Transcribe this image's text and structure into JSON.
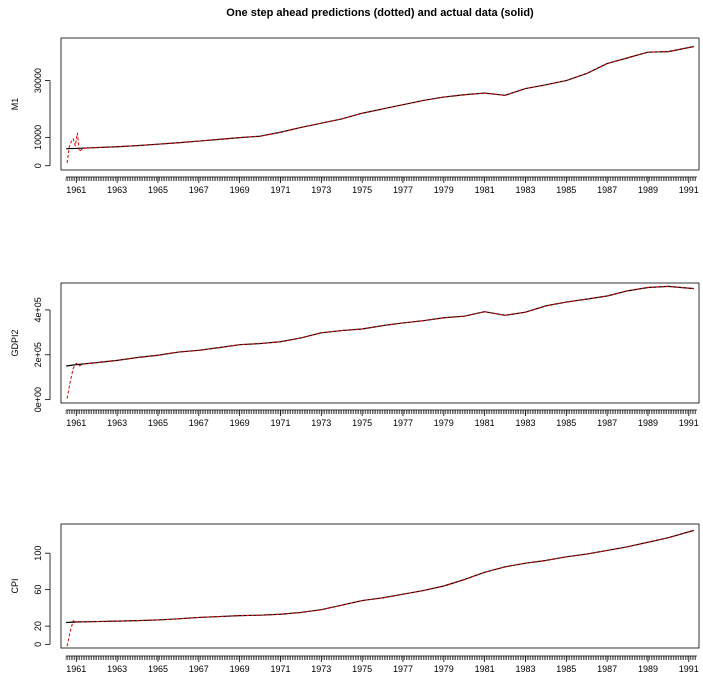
{
  "title": "One step ahead predictions (dotted) and actual data (solid)",
  "colors": {
    "actual": "#000000",
    "predicted": "#dd0000",
    "axis": "#000000"
  },
  "chart_data": [
    {
      "type": "line",
      "ylabel": "M1",
      "xlim": [
        1960.25,
        1991.5
      ],
      "ylim": [
        -1500,
        45000
      ],
      "x_ticks": [
        1961,
        1963,
        1965,
        1967,
        1969,
        1971,
        1973,
        1975,
        1977,
        1979,
        1981,
        1983,
        1985,
        1987,
        1989,
        1991
      ],
      "x_tick_labels": [
        "1961",
        "1963",
        "1965",
        "1967",
        "1969",
        "1971",
        "1973",
        "1975",
        "1977",
        "1979",
        "1981",
        "1983",
        "1985",
        "1987",
        "1989",
        "1991"
      ],
      "y_ticks": [
        0,
        10000,
        30000
      ],
      "y_tick_labels": [
        "0",
        "10000",
        "30000"
      ],
      "series": [
        {
          "role": "actual",
          "x": [
            1960.5,
            1961,
            1962,
            1963,
            1964,
            1965,
            1966,
            1967,
            1968,
            1969,
            1970,
            1971,
            1972,
            1973,
            1974,
            1975,
            1976,
            1977,
            1978,
            1979,
            1980,
            1981,
            1982,
            1983,
            1984,
            1985,
            1986,
            1987,
            1988,
            1989,
            1990,
            1991.25
          ],
          "y": [
            6000,
            6100,
            6400,
            6700,
            7100,
            7600,
            8100,
            8700,
            9300,
            9900,
            10400,
            11800,
            13500,
            15000,
            16500,
            18500,
            20000,
            21500,
            23000,
            24200,
            25000,
            25600,
            24800,
            27200,
            28500,
            30000,
            32500,
            36000,
            38000,
            40000,
            40200,
            42000
          ]
        },
        {
          "role": "predicted",
          "x": [
            1960.55,
            1960.65,
            1960.75,
            1960.85,
            1960.95,
            1961.05,
            1961.15,
            1961.3,
            1962,
            1963,
            1964,
            1965,
            1966,
            1967,
            1968,
            1969,
            1970,
            1971,
            1972,
            1973,
            1974,
            1975,
            1976,
            1977,
            1978,
            1979,
            1980,
            1981,
            1982,
            1983,
            1984,
            1985,
            1986,
            1987,
            1988,
            1989,
            1990,
            1991.25
          ],
          "y": [
            1000,
            6500,
            8500,
            9500,
            7000,
            11500,
            5000,
            6100,
            6400,
            6700,
            7100,
            7600,
            8100,
            8700,
            9300,
            9900,
            10400,
            11800,
            13500,
            15000,
            16500,
            18500,
            20000,
            21500,
            23000,
            24200,
            25000,
            25600,
            24800,
            27200,
            28500,
            30000,
            32500,
            36000,
            38000,
            40000,
            40200,
            42000
          ]
        }
      ]
    },
    {
      "type": "line",
      "ylabel": "GDPI2",
      "xlim": [
        1960.25,
        1991.5
      ],
      "ylim": [
        -15000,
        520000
      ],
      "x_ticks": [
        1961,
        1963,
        1965,
        1967,
        1969,
        1971,
        1973,
        1975,
        1977,
        1979,
        1981,
        1983,
        1985,
        1987,
        1989,
        1991
      ],
      "x_tick_labels": [
        "1961",
        "1963",
        "1965",
        "1967",
        "1969",
        "1971",
        "1973",
        "1975",
        "1977",
        "1979",
        "1981",
        "1983",
        "1985",
        "1987",
        "1989",
        "1991"
      ],
      "y_ticks": [
        0,
        200000,
        400000
      ],
      "y_tick_labels": [
        "0e+00",
        "2e+05",
        "4e+05"
      ],
      "series": [
        {
          "role": "actual",
          "x": [
            1960.5,
            1961,
            1962,
            1963,
            1964,
            1965,
            1966,
            1967,
            1968,
            1969,
            1970,
            1971,
            1972,
            1973,
            1974,
            1975,
            1976,
            1977,
            1978,
            1979,
            1980,
            1981,
            1982,
            1983,
            1984,
            1985,
            1986,
            1987,
            1988,
            1989,
            1990,
            1991.25
          ],
          "y": [
            150000,
            156000,
            165000,
            175000,
            188000,
            198000,
            212000,
            220000,
            232000,
            245000,
            250000,
            258000,
            275000,
            298000,
            308000,
            315000,
            330000,
            342000,
            352000,
            365000,
            372000,
            392000,
            376000,
            390000,
            418000,
            435000,
            448000,
            462000,
            485000,
            500000,
            505000,
            495000
          ]
        },
        {
          "role": "predicted",
          "x": [
            1960.55,
            1960.7,
            1960.85,
            1961,
            1961.15,
            1961.3,
            1962,
            1963,
            1964,
            1965,
            1966,
            1967,
            1968,
            1969,
            1970,
            1971,
            1972,
            1973,
            1974,
            1975,
            1976,
            1977,
            1978,
            1979,
            1980,
            1981,
            1982,
            1983,
            1984,
            1985,
            1986,
            1987,
            1988,
            1989,
            1990,
            1991.25
          ],
          "y": [
            5000,
            80000,
            140000,
            162000,
            150000,
            158000,
            165000,
            175000,
            188000,
            198000,
            212000,
            220000,
            232000,
            245000,
            250000,
            258000,
            275000,
            298000,
            308000,
            315000,
            330000,
            342000,
            352000,
            365000,
            372000,
            392000,
            376000,
            390000,
            418000,
            435000,
            448000,
            462000,
            485000,
            500000,
            505000,
            495000
          ]
        }
      ]
    },
    {
      "type": "line",
      "ylabel": "CPI",
      "xlim": [
        1960.25,
        1991.5
      ],
      "ylim": [
        -4,
        132
      ],
      "x_ticks": [
        1961,
        1963,
        1965,
        1967,
        1969,
        1971,
        1973,
        1975,
        1977,
        1979,
        1981,
        1983,
        1985,
        1987,
        1989,
        1991
      ],
      "x_tick_labels": [
        "1961",
        "1963",
        "1965",
        "1967",
        "1969",
        "1971",
        "1973",
        "1975",
        "1977",
        "1979",
        "1981",
        "1983",
        "1985",
        "1987",
        "1989",
        "1991"
      ],
      "y_ticks": [
        0,
        20,
        60,
        100
      ],
      "y_tick_labels": [
        "0",
        "20",
        "60",
        "100"
      ],
      "series": [
        {
          "role": "actual",
          "x": [
            1960.5,
            1961,
            1962,
            1963,
            1964,
            1965,
            1966,
            1967,
            1968,
            1969,
            1970,
            1971,
            1972,
            1973,
            1974,
            1975,
            1976,
            1977,
            1978,
            1979,
            1980,
            1981,
            1982,
            1983,
            1984,
            1985,
            1986,
            1987,
            1988,
            1989,
            1990,
            1991.25
          ],
          "y": [
            24,
            24.5,
            25,
            25.5,
            26,
            26.8,
            28,
            29.5,
            30.5,
            31.5,
            32,
            33,
            35,
            38,
            43,
            48,
            51,
            55,
            59,
            64,
            71,
            79,
            85,
            89,
            92,
            96,
            99,
            103,
            107,
            112,
            117,
            125
          ]
        },
        {
          "role": "predicted",
          "x": [
            1960.55,
            1960.7,
            1960.85,
            1961,
            1961.15,
            1961.3,
            1962,
            1963,
            1964,
            1965,
            1966,
            1967,
            1968,
            1969,
            1970,
            1971,
            1972,
            1973,
            1974,
            1975,
            1976,
            1977,
            1978,
            1979,
            1980,
            1981,
            1982,
            1983,
            1984,
            1985,
            1986,
            1987,
            1988,
            1989,
            1990,
            1991.25
          ],
          "y": [
            -2,
            14,
            26,
            24,
            25.5,
            24.5,
            25,
            25.5,
            26,
            26.8,
            28,
            29.5,
            30.5,
            31.5,
            32,
            33,
            35,
            38,
            43,
            48,
            51,
            55,
            59,
            64,
            71,
            79,
            85,
            89,
            92,
            96,
            99,
            103,
            107,
            112,
            117,
            125
          ]
        }
      ]
    }
  ]
}
